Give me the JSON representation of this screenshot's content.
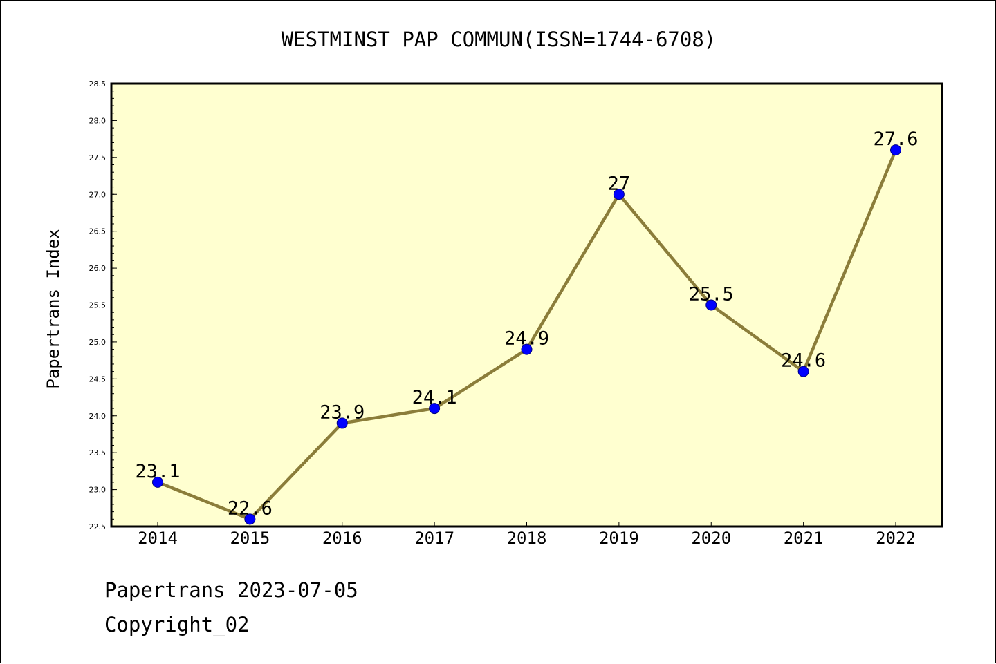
{
  "chart_data": {
    "type": "line",
    "title": "WESTMINST PAP COMMUN(ISSN=1744-6708)",
    "xlabel": "",
    "ylabel": "Papertrans Index",
    "categories": [
      "2014",
      "2015",
      "2016",
      "2017",
      "2018",
      "2019",
      "2020",
      "2021",
      "2022"
    ],
    "series": [
      {
        "values": [
          23.1,
          22.6,
          23.9,
          24.1,
          24.9,
          27.0,
          25.5,
          24.6,
          27.6
        ],
        "data_labels": [
          "23.1",
          "22.6",
          "23.9",
          "24.1",
          "24.9",
          "27",
          "25.5",
          "24.6",
          "27.6"
        ],
        "line_color": "#8b7d3a",
        "marker_color": "#0000ff"
      }
    ],
    "ylim": [
      22.5,
      28.5
    ],
    "yticks": [
      "22.5",
      "23.0",
      "23.5",
      "24.0",
      "24.5",
      "25.0",
      "25.5",
      "26.0",
      "26.5",
      "27.0",
      "27.5",
      "28.0",
      "28.5"
    ],
    "plot_background": "#ffffd0",
    "grid": false,
    "legend": "none"
  },
  "footer": {
    "date_line": "Papertrans 2023-07-05",
    "copyright": "Copyright_02"
  }
}
